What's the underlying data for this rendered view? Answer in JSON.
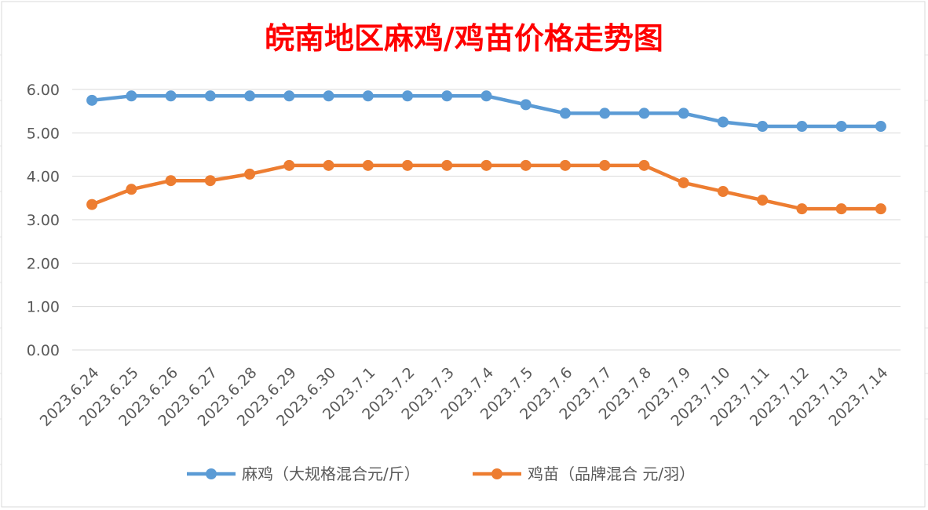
{
  "chart_data": {
    "type": "line",
    "title": "皖南地区麻鸡/鸡苗价格走势图",
    "xlabel": "",
    "ylabel": "",
    "categories": [
      "2023.6.24",
      "2023.6.25",
      "2023.6.26",
      "2023.6.27",
      "2023.6.28",
      "2023.6.29",
      "2023.6.30",
      "2023.7.1",
      "2023.7.2",
      "2023.7.3",
      "2023.7.4",
      "2023.7.5",
      "2023.7.6",
      "2023.7.7",
      "2023.7.8",
      "2023.7.9",
      "2023.7.10",
      "2023.7.11",
      "2023.7.12",
      "2023.7.13",
      "2023.7.14"
    ],
    "ylim": [
      0,
      6
    ],
    "yticks": [
      "0.00",
      "1.00",
      "2.00",
      "3.00",
      "4.00",
      "5.00",
      "6.00"
    ],
    "grid": true,
    "legend_position": "bottom",
    "series": [
      {
        "name": "麻鸡（大规格混合元/斤）",
        "color": "#5b9bd5",
        "values": [
          5.75,
          5.85,
          5.85,
          5.85,
          5.85,
          5.85,
          5.85,
          5.85,
          5.85,
          5.85,
          5.85,
          5.65,
          5.45,
          5.45,
          5.45,
          5.45,
          5.25,
          5.15,
          5.15,
          5.15,
          5.15
        ]
      },
      {
        "name": "鸡苗（品牌混合 元/羽）",
        "color": "#ed7d31",
        "values": [
          3.35,
          3.7,
          3.9,
          3.9,
          4.05,
          4.25,
          4.25,
          4.25,
          4.25,
          4.25,
          4.25,
          4.25,
          4.25,
          4.25,
          4.25,
          3.85,
          3.65,
          3.45,
          3.25,
          3.25,
          3.25
        ]
      }
    ]
  }
}
